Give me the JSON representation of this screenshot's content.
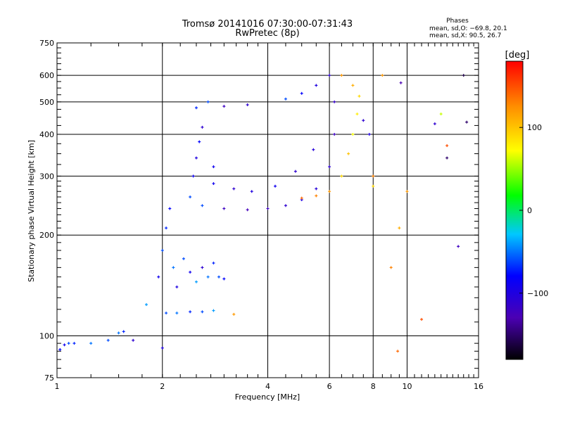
{
  "chart_data": {
    "type": "scatter",
    "title": "Tromsø 20141016 07:30:00-07:31:43",
    "subtitle": "RwPretec (8p)",
    "xlabel": "Frequency [MHz]",
    "ylabel": "Stationary phase Virtual Height [km]",
    "x_scale": "log",
    "y_scale": "log",
    "xlim": [
      1,
      16
    ],
    "ylim": [
      75,
      750
    ],
    "x_ticks": [
      1,
      2,
      4,
      6,
      8,
      10,
      16
    ],
    "x_tick_labels": [
      "1",
      "2",
      "4",
      "6",
      "8",
      "10",
      "16"
    ],
    "y_ticks": [
      75,
      100,
      200,
      300,
      400,
      500,
      600,
      750
    ],
    "y_tick_labels": [
      "75",
      "100",
      "200",
      "300",
      "400",
      "500",
      "600",
      "750"
    ],
    "grid": true,
    "phases_box": {
      "heading": "Phases",
      "line1": "mean, sd,O: −69.8, 20.1",
      "line2": "mean, sd,X:  90.5, 26.7"
    },
    "colorbar": {
      "label": "[deg]",
      "range": [
        -180,
        180
      ],
      "ticks": [
        100,
        0,
        -100
      ],
      "tick_labels": [
        "100",
        "0",
        "−100"
      ]
    },
    "points": [
      {
        "x": 1.02,
        "y": 91,
        "phase": -80
      },
      {
        "x": 1.05,
        "y": 94,
        "phase": -90
      },
      {
        "x": 1.08,
        "y": 95,
        "phase": -60
      },
      {
        "x": 1.12,
        "y": 95,
        "phase": -70
      },
      {
        "x": 1.25,
        "y": 95,
        "phase": -50
      },
      {
        "x": 1.4,
        "y": 97,
        "phase": -60
      },
      {
        "x": 1.5,
        "y": 102,
        "phase": -50
      },
      {
        "x": 1.55,
        "y": 103,
        "phase": -70
      },
      {
        "x": 1.65,
        "y": 97,
        "phase": -110
      },
      {
        "x": 1.8,
        "y": 124,
        "phase": -40
      },
      {
        "x": 2.0,
        "y": 92,
        "phase": -100
      },
      {
        "x": 1.95,
        "y": 150,
        "phase": -90
      },
      {
        "x": 2.0,
        "y": 180,
        "phase": -60
      },
      {
        "x": 2.05,
        "y": 210,
        "phase": -70
      },
      {
        "x": 2.1,
        "y": 240,
        "phase": -80
      },
      {
        "x": 2.15,
        "y": 160,
        "phase": -50
      },
      {
        "x": 2.2,
        "y": 140,
        "phase": -100
      },
      {
        "x": 2.3,
        "y": 170,
        "phase": -60
      },
      {
        "x": 2.4,
        "y": 155,
        "phase": -90
      },
      {
        "x": 2.5,
        "y": 145,
        "phase": -40
      },
      {
        "x": 2.6,
        "y": 160,
        "phase": -110
      },
      {
        "x": 2.7,
        "y": 150,
        "phase": -50
      },
      {
        "x": 2.8,
        "y": 165,
        "phase": -70
      },
      {
        "x": 2.9,
        "y": 150,
        "phase": -60
      },
      {
        "x": 3.0,
        "y": 148,
        "phase": -80
      },
      {
        "x": 2.05,
        "y": 117,
        "phase": -60
      },
      {
        "x": 2.2,
        "y": 117,
        "phase": -50
      },
      {
        "x": 2.4,
        "y": 118,
        "phase": -70
      },
      {
        "x": 2.6,
        "y": 118,
        "phase": -60
      },
      {
        "x": 2.8,
        "y": 119,
        "phase": -40
      },
      {
        "x": 3.2,
        "y": 116,
        "phase": 120
      },
      {
        "x": 2.4,
        "y": 260,
        "phase": -60
      },
      {
        "x": 2.45,
        "y": 300,
        "phase": -90
      },
      {
        "x": 2.5,
        "y": 340,
        "phase": -100
      },
      {
        "x": 2.55,
        "y": 380,
        "phase": -80
      },
      {
        "x": 2.6,
        "y": 420,
        "phase": -110
      },
      {
        "x": 2.5,
        "y": 480,
        "phase": -70
      },
      {
        "x": 2.7,
        "y": 500,
        "phase": -60
      },
      {
        "x": 2.8,
        "y": 320,
        "phase": -90
      },
      {
        "x": 2.6,
        "y": 245,
        "phase": -60
      },
      {
        "x": 3.0,
        "y": 240,
        "phase": -120
      },
      {
        "x": 3.5,
        "y": 238,
        "phase": -125
      },
      {
        "x": 4.0,
        "y": 240,
        "phase": -120
      },
      {
        "x": 4.5,
        "y": 245,
        "phase": -110
      },
      {
        "x": 5.0,
        "y": 255,
        "phase": -100
      },
      {
        "x": 5.5,
        "y": 275,
        "phase": -105
      },
      {
        "x": 6.0,
        "y": 320,
        "phase": -110
      },
      {
        "x": 6.2,
        "y": 400,
        "phase": -120
      },
      {
        "x": 6.2,
        "y": 500,
        "phase": -115
      },
      {
        "x": 6.0,
        "y": 600,
        "phase": -110
      },
      {
        "x": 5.5,
        "y": 560,
        "phase": -100
      },
      {
        "x": 5.0,
        "y": 530,
        "phase": -80
      },
      {
        "x": 4.5,
        "y": 510,
        "phase": -60
      },
      {
        "x": 3.5,
        "y": 490,
        "phase": -110
      },
      {
        "x": 3.0,
        "y": 485,
        "phase": -120
      },
      {
        "x": 2.8,
        "y": 285,
        "phase": -90
      },
      {
        "x": 3.2,
        "y": 275,
        "phase": -110
      },
      {
        "x": 3.6,
        "y": 270,
        "phase": -100
      },
      {
        "x": 4.2,
        "y": 280,
        "phase": -90
      },
      {
        "x": 4.8,
        "y": 310,
        "phase": -110
      },
      {
        "x": 5.4,
        "y": 360,
        "phase": -105
      },
      {
        "x": 5.0,
        "y": 258,
        "phase": 140
      },
      {
        "x": 5.5,
        "y": 262,
        "phase": 130
      },
      {
        "x": 6.0,
        "y": 270,
        "phase": 120
      },
      {
        "x": 6.5,
        "y": 300,
        "phase": 90
      },
      {
        "x": 6.8,
        "y": 350,
        "phase": 100
      },
      {
        "x": 7.0,
        "y": 400,
        "phase": 70
      },
      {
        "x": 7.2,
        "y": 460,
        "phase": 80
      },
      {
        "x": 7.3,
        "y": 520,
        "phase": 90
      },
      {
        "x": 7.0,
        "y": 560,
        "phase": 110
      },
      {
        "x": 6.5,
        "y": 600,
        "phase": 120
      },
      {
        "x": 7.5,
        "y": 440,
        "phase": -110
      },
      {
        "x": 7.8,
        "y": 400,
        "phase": -100
      },
      {
        "x": 8.0,
        "y": 280,
        "phase": 90
      },
      {
        "x": 8.0,
        "y": 300,
        "phase": 130
      },
      {
        "x": 8.5,
        "y": 600,
        "phase": 120
      },
      {
        "x": 9.0,
        "y": 160,
        "phase": 130
      },
      {
        "x": 9.4,
        "y": 90,
        "phase": 140
      },
      {
        "x": 9.5,
        "y": 210,
        "phase": 110
      },
      {
        "x": 9.6,
        "y": 570,
        "phase": -130
      },
      {
        "x": 10.0,
        "y": 270,
        "phase": 120
      },
      {
        "x": 11.0,
        "y": 112,
        "phase": 150
      },
      {
        "x": 12.0,
        "y": 430,
        "phase": -110
      },
      {
        "x": 13.0,
        "y": 340,
        "phase": -150
      },
      {
        "x": 13.0,
        "y": 370,
        "phase": 150
      },
      {
        "x": 14.0,
        "y": 185,
        "phase": -120
      },
      {
        "x": 14.5,
        "y": 600,
        "phase": -160
      },
      {
        "x": 14.8,
        "y": 435,
        "phase": -150
      },
      {
        "x": 12.5,
        "y": 460,
        "phase": 60
      }
    ]
  }
}
